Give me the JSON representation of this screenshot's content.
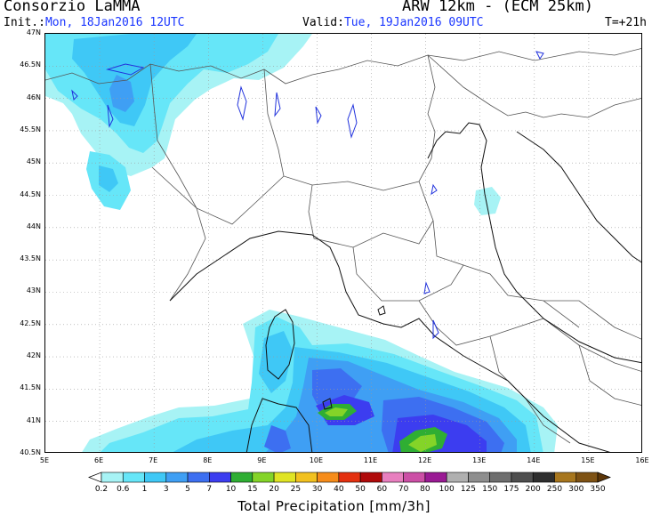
{
  "header": {
    "source": "Consorzio LaMMA",
    "model": "ARW 12km - (ECM 25km)",
    "init_label": "Init.:",
    "init_value": "Mon, 18Jan2016 12UTC",
    "valid_label": "Valid:",
    "valid_value": "Tue, 19Jan2016 09UTC",
    "step": "T=+21h"
  },
  "map": {
    "lon_labels": [
      "5E",
      "6E",
      "7E",
      "8E",
      "9E",
      "10E",
      "11E",
      "12E",
      "13E",
      "14E",
      "15E",
      "16E"
    ],
    "lat_labels": [
      "47N",
      "46.5N",
      "46N",
      "45.5N",
      "45N",
      "44.5N",
      "44N",
      "43.5N",
      "43N",
      "42.5N",
      "42N",
      "41.5N",
      "41N",
      "40.5N"
    ],
    "lon_range": [
      5,
      16
    ],
    "lat_range": [
      40.5,
      47
    ],
    "grid": "dotted",
    "colors": {
      "border": "#555555",
      "coast": "#111111",
      "lakes": "#2233dd"
    }
  },
  "legend": {
    "title": "Total Precipitation [mm/3h]",
    "thresholds": [
      "0.2",
      "0.6",
      "1",
      "3",
      "5",
      "7",
      "10",
      "15",
      "20",
      "25",
      "30",
      "40",
      "50",
      "60",
      "70",
      "80",
      "100",
      "125",
      "150",
      "175",
      "200",
      "250",
      "300",
      "350"
    ],
    "colors": [
      "#ffffff",
      "#a7f3f5",
      "#66e6f8",
      "#3fc8f6",
      "#3f9ff4",
      "#3d6ff1",
      "#3c3df0",
      "#2fae33",
      "#84d428",
      "#e0e424",
      "#f2c11f",
      "#f68c1a",
      "#e4300f",
      "#b00a0a",
      "#e87fbf",
      "#cc4fa6",
      "#9a1a94",
      "#b0b0b0",
      "#8e8e8e",
      "#6e6e6e",
      "#4e4e4e",
      "#2e2e2e",
      "#a7761e",
      "#7e5214",
      "#5c3608"
    ]
  }
}
